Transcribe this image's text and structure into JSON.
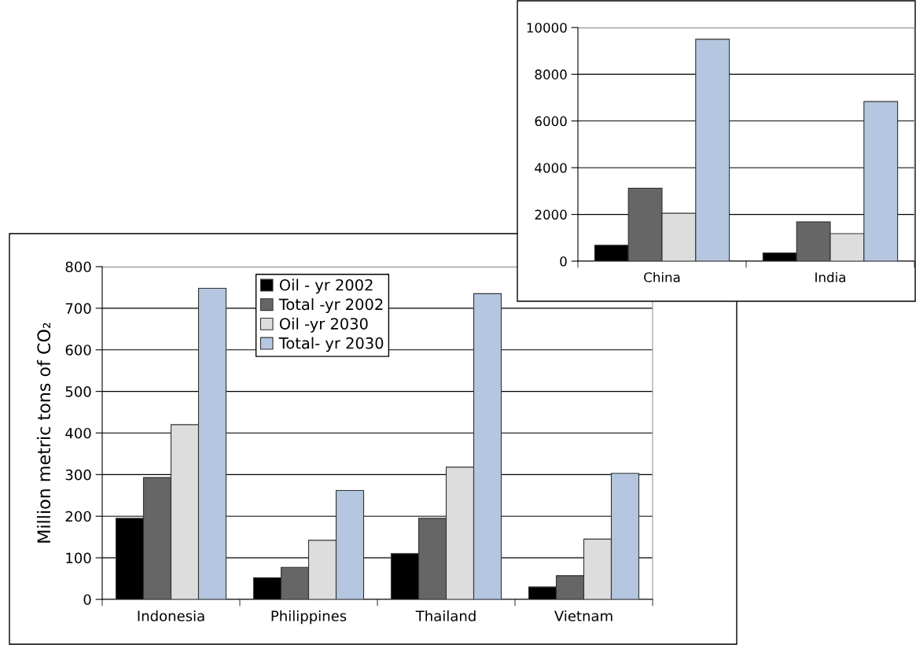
{
  "chart_data": [
    {
      "type": "bar",
      "ylabel": "Million metric tons of CO₂",
      "categories": [
        "Indonesia",
        "Philippines",
        "Thailand",
        "Vietnam"
      ],
      "series": [
        {
          "name": "Oil - yr 2002",
          "color": "#000000",
          "values": [
            195,
            52,
            110,
            30
          ]
        },
        {
          "name": "Total -yr 2002",
          "color": "#666666",
          "values": [
            293,
            77,
            195,
            57
          ]
        },
        {
          "name": "Oil -yr 2030",
          "color": "#dddddd",
          "values": [
            420,
            142,
            318,
            145
          ]
        },
        {
          "name": "Total- yr 2030",
          "color": "#b4c6e0",
          "values": [
            748,
            262,
            735,
            303
          ]
        }
      ],
      "ylim": [
        0,
        800
      ],
      "yticks": [
        0,
        100,
        200,
        300,
        400,
        500,
        600,
        700,
        800
      ],
      "grid": "y",
      "legend": "top"
    },
    {
      "type": "bar",
      "categories": [
        "China",
        "India"
      ],
      "series": [
        {
          "color": "#000000",
          "values": [
            680,
            350
          ]
        },
        {
          "color": "#666666",
          "values": [
            3120,
            1680
          ]
        },
        {
          "color": "#dddddd",
          "values": [
            2050,
            1180
          ]
        },
        {
          "color": "#b4c6e0",
          "values": [
            9500,
            6830
          ]
        }
      ],
      "ylim": [
        0,
        10000
      ],
      "yticks": [
        0,
        2000,
        4000,
        6000,
        8000,
        10000
      ],
      "grid": "y"
    }
  ]
}
